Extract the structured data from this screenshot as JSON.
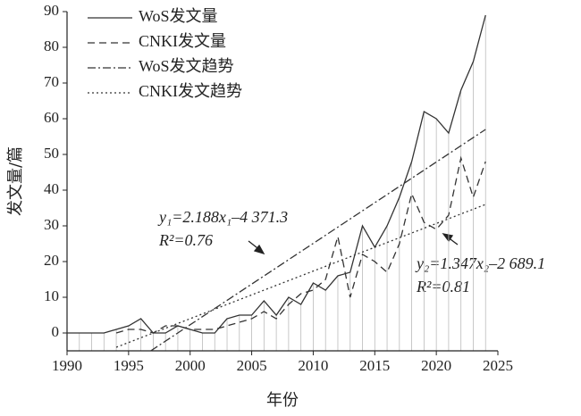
{
  "chart_data": {
    "type": "line",
    "x_label": "年份",
    "y_label": "发文量/篇",
    "xlim": [
      1990,
      2025
    ],
    "xticks": [
      1990,
      1995,
      2000,
      2005,
      2010,
      2015,
      2020,
      2025
    ],
    "ylim": [
      -5,
      90
    ],
    "yticks": [
      0,
      10,
      20,
      30,
      40,
      50,
      60,
      70,
      80,
      90
    ],
    "series": [
      {
        "name": "WoS发文量",
        "color": "#333333",
        "style": "solid",
        "x": [
          1990,
          1991,
          1992,
          1993,
          1994,
          1995,
          1996,
          1997,
          1998,
          1999,
          2000,
          2001,
          2002,
          2003,
          2004,
          2005,
          2006,
          2007,
          2008,
          2009,
          2010,
          2011,
          2012,
          2013,
          2014,
          2015,
          2016,
          2017,
          2018,
          2019,
          2020,
          2021,
          2022,
          2023,
          2024
        ],
        "values": [
          0,
          0,
          0,
          0,
          1,
          2,
          4,
          0,
          0,
          2,
          1,
          0,
          0,
          4,
          5,
          5,
          9,
          5,
          10,
          8,
          14,
          12,
          16,
          17,
          30,
          24,
          30,
          38,
          48,
          62,
          60,
          56,
          68,
          76,
          89
        ]
      },
      {
        "name": "CNKI发文量",
        "color": "#333333",
        "style": "dashed",
        "x": [
          1990,
          1991,
          1992,
          1993,
          1994,
          1995,
          1996,
          1997,
          1998,
          1999,
          2000,
          2001,
          2002,
          2003,
          2004,
          2005,
          2006,
          2007,
          2008,
          2009,
          2010,
          2011,
          2012,
          2013,
          2014,
          2015,
          2016,
          2017,
          2018,
          2019,
          2020,
          2021,
          2022,
          2023,
          2024
        ],
        "values": [
          null,
          null,
          null,
          null,
          0,
          1,
          1,
          0,
          2,
          2,
          1,
          1,
          1,
          2,
          3,
          4,
          6,
          4,
          8,
          11,
          12,
          15,
          27,
          10,
          22,
          20,
          17,
          25,
          39,
          31,
          29,
          33,
          49,
          38,
          48
        ]
      },
      {
        "name": "WoS发文趋势",
        "color": "#333333",
        "style": "dashdot",
        "x": [
          1996.8,
          2024
        ],
        "values": [
          -5,
          57
        ]
      },
      {
        "name": "CNKI发文趋势",
        "color": "#333333",
        "style": "dotted",
        "x": [
          1994,
          2024
        ],
        "values": [
          -4,
          36
        ]
      }
    ],
    "annotations": [
      {
        "equation": "y₁=2.188x₁–4 371.3",
        "r2": "R²=0.76"
      },
      {
        "equation": "y₂=1.347x₂–2 689.1",
        "r2": "R²=0.81"
      }
    ]
  }
}
